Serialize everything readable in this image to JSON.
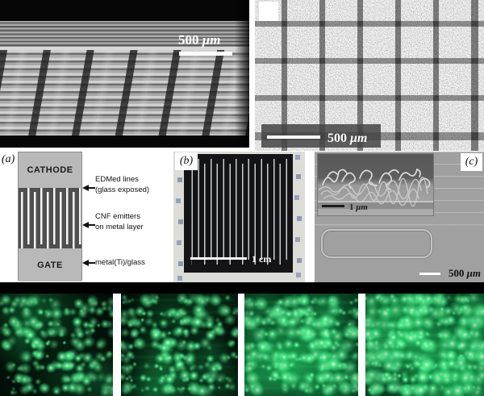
{
  "panels": {
    "sem_grating": {
      "scale_value": "500",
      "scale_unit": "μm"
    },
    "sem_squares": {
      "scale_value": "500",
      "scale_unit": "μm"
    },
    "schematic": {
      "label": "(a)",
      "cathode_label": "CATHODE",
      "gate_label": "GATE",
      "annotations": [
        {
          "line1": "EDMed lines",
          "line2": "(glass exposed)"
        },
        {
          "line1": "CNF emitters",
          "line2": "on metal layer"
        },
        {
          "line1": "metal(Ti)/glass",
          "line2": ""
        }
      ]
    },
    "photo": {
      "label": "(b)",
      "scale_value": "1",
      "scale_unit": "cm"
    },
    "sem_lines": {
      "label": "(c)",
      "scale_value": "500",
      "scale_unit": "μm",
      "inset_scale_value": "1",
      "inset_scale_unit": "μm"
    }
  },
  "emission": {
    "description": "green phosphor field-emission images, brightness increasing left to right",
    "panels": [
      {
        "name": "emission-image-1",
        "intensity": 0.5
      },
      {
        "name": "emission-image-2",
        "intensity": 0.62
      },
      {
        "name": "emission-image-3",
        "intensity": 0.95
      },
      {
        "name": "emission-image-4",
        "intensity": 1.15
      }
    ]
  },
  "colors": {
    "emission_green": "#2ee86e",
    "sem_gray": "#9b9b9b",
    "schematic_gray": "#b9b9b9"
  }
}
